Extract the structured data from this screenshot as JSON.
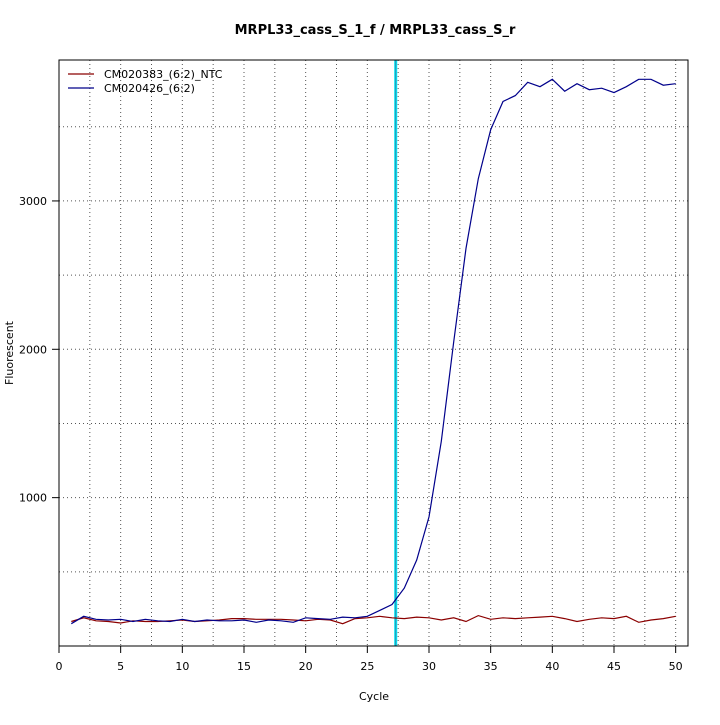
{
  "chart_data": {
    "type": "line",
    "title": "MRPL33_cass_S_1_f / MRPL33_cass_S_r",
    "xlabel": "Cycle",
    "ylabel": "Fluorescent",
    "xlim": [
      0,
      51
    ],
    "ylim": [
      0,
      3950
    ],
    "x_ticks": [
      0,
      5,
      10,
      15,
      20,
      25,
      30,
      35,
      40,
      45,
      50
    ],
    "y_ticks": [
      1000,
      2000,
      3000
    ],
    "grid": true,
    "grid_style": "dotted",
    "legend_position": "top-left",
    "threshold_cycle": 27.3,
    "threshold_color": "#00e5ee",
    "series": [
      {
        "name": "CM020383_(6:2)_NTC",
        "color": "#8b0000",
        "x": [
          1,
          2,
          3,
          4,
          5,
          6,
          7,
          8,
          9,
          10,
          11,
          12,
          13,
          14,
          15,
          16,
          17,
          18,
          19,
          20,
          21,
          22,
          23,
          24,
          25,
          26,
          27,
          28,
          29,
          30,
          31,
          32,
          33,
          34,
          35,
          36,
          37,
          38,
          39,
          40,
          41,
          42,
          43,
          44,
          45,
          46,
          47,
          48,
          49,
          50
        ],
        "values": [
          165,
          190,
          170,
          165,
          155,
          170,
          165,
          165,
          170,
          175,
          165,
          170,
          175,
          185,
          185,
          180,
          180,
          180,
          175,
          170,
          180,
          175,
          150,
          185,
          190,
          200,
          190,
          185,
          195,
          190,
          175,
          190,
          165,
          205,
          180,
          190,
          185,
          190,
          195,
          200,
          185,
          165,
          180,
          190,
          185,
          200,
          160,
          175,
          185,
          200
        ]
      },
      {
        "name": "CM020426_(6:2)",
        "color": "#00008b",
        "x": [
          1,
          2,
          3,
          4,
          5,
          6,
          7,
          8,
          9,
          10,
          11,
          12,
          13,
          14,
          15,
          16,
          17,
          18,
          19,
          20,
          21,
          22,
          23,
          24,
          25,
          26,
          27,
          28,
          29,
          30,
          31,
          32,
          33,
          34,
          35,
          36,
          37,
          38,
          39,
          40,
          41,
          42,
          43,
          44,
          45,
          46,
          47,
          48,
          49,
          50
        ],
        "values": [
          150,
          200,
          180,
          175,
          180,
          165,
          180,
          170,
          165,
          180,
          165,
          175,
          170,
          170,
          175,
          160,
          175,
          170,
          160,
          190,
          185,
          180,
          195,
          190,
          200,
          240,
          280,
          390,
          580,
          870,
          1380,
          2050,
          2680,
          3150,
          3480,
          3670,
          3710,
          3800,
          3770,
          3820,
          3740,
          3790,
          3750,
          3760,
          3730,
          3770,
          3820,
          3820,
          3780,
          3790
        ]
      }
    ]
  }
}
